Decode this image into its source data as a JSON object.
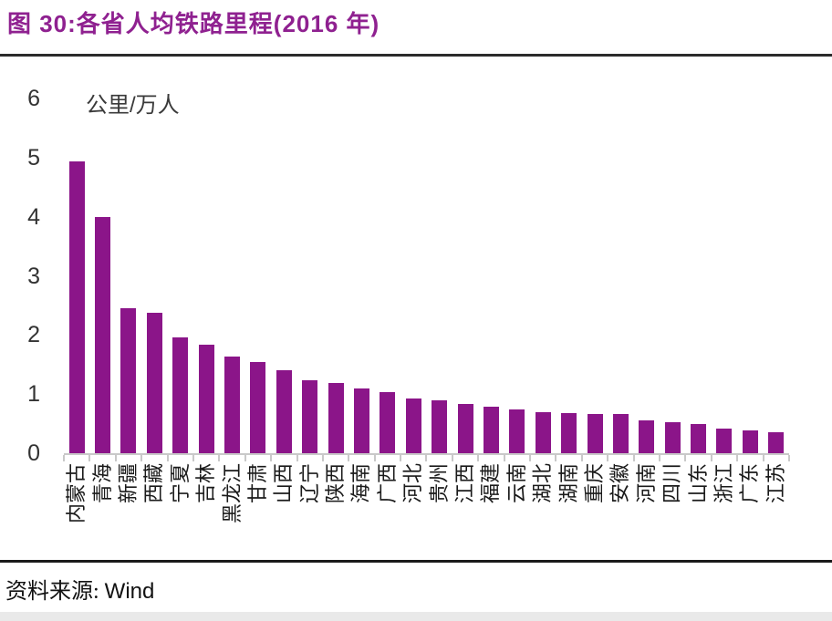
{
  "figure": {
    "title": "图 30:各省人均铁路里程(2016 年)",
    "source_label": "资料来源:",
    "source_value": "Wind"
  },
  "colors": {
    "bar": "#8B1589",
    "title": "#8F2190",
    "axis_line": "#c9c9c9",
    "axis_text": "#333333"
  },
  "chart_data": {
    "type": "bar",
    "title": "各省人均铁路里程(2016 年)",
    "unit_label": "公里/万人",
    "ylabel": "公里/万人",
    "xlabel": "",
    "ylim": [
      0,
      6
    ],
    "yticks": [
      0,
      1,
      2,
      3,
      4,
      5,
      6
    ],
    "grid": false,
    "legend": "none",
    "bar_color": "#8B1589",
    "categories": [
      "内蒙古",
      "青海",
      "新疆",
      "西藏",
      "宁夏",
      "吉林",
      "黑龙江",
      "甘肃",
      "山西",
      "辽宁",
      "陕西",
      "海南",
      "广西",
      "河北",
      "贵州",
      "江西",
      "福建",
      "云南",
      "湖北",
      "湖南",
      "重庆",
      "安徽",
      "河南",
      "四川",
      "山东",
      "浙江",
      "广东",
      "江苏"
    ],
    "values": [
      4.93,
      4.0,
      2.45,
      2.37,
      1.96,
      1.83,
      1.63,
      1.55,
      1.41,
      1.24,
      1.19,
      1.1,
      1.04,
      0.92,
      0.89,
      0.84,
      0.79,
      0.74,
      0.7,
      0.68,
      0.67,
      0.66,
      0.55,
      0.53,
      0.5,
      0.42,
      0.38,
      0.35
    ]
  }
}
